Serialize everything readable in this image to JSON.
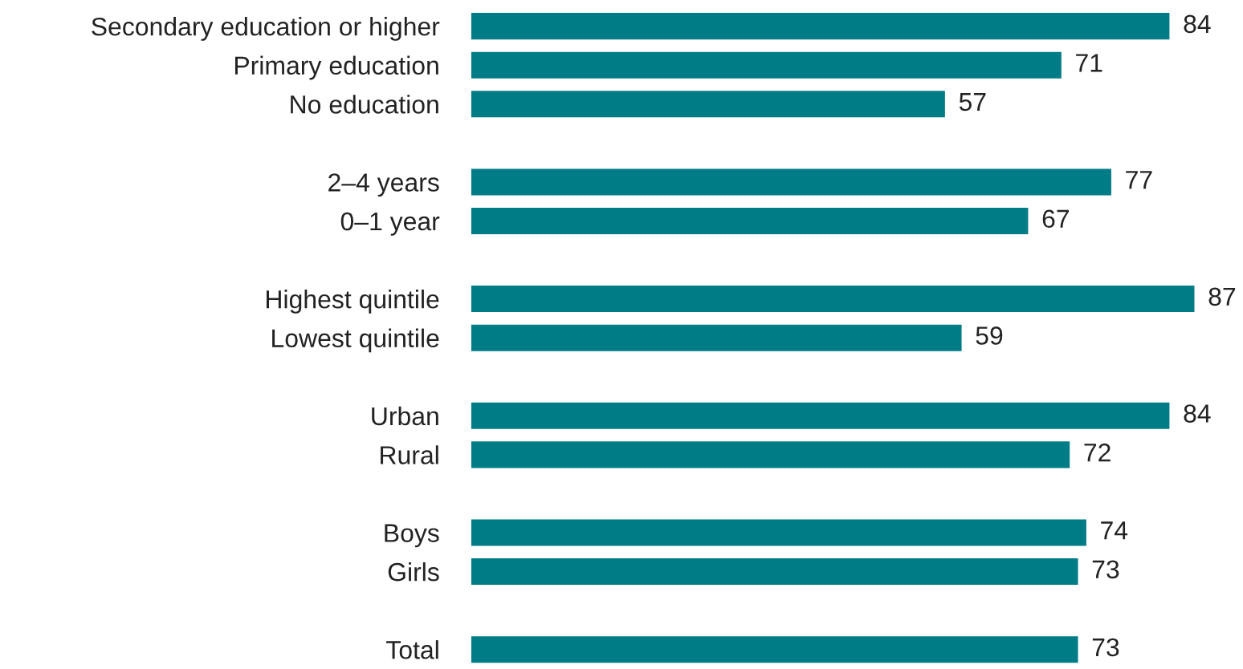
{
  "chart_data": {
    "type": "bar",
    "orientation": "horizontal",
    "categories": [
      "Secondary education or higher",
      "Primary education",
      "No education",
      null,
      "2–4 years",
      "0–1 year",
      null,
      "Highest quintile",
      "Lowest quintile",
      null,
      "Urban",
      "Rural",
      null,
      "Boys",
      "Girls",
      null,
      "Total"
    ],
    "values": [
      84,
      71,
      57,
      null,
      77,
      67,
      null,
      87,
      59,
      null,
      84,
      72,
      null,
      74,
      73,
      null,
      73
    ],
    "color": "#007c86",
    "data_labels": true,
    "grid": false,
    "legend": false
  }
}
